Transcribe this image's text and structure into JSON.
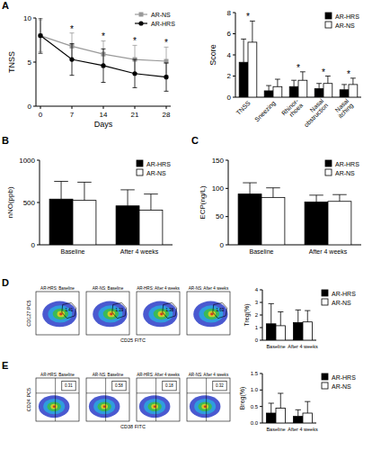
{
  "panel_labels": [
    "A",
    "B",
    "C",
    "D",
    "E"
  ],
  "chart_data": [
    {
      "type": "line",
      "x_label": "Days",
      "y_label": "TNSS",
      "x": [
        0,
        7,
        14,
        21,
        28
      ],
      "xlim": [
        -1,
        29
      ],
      "xticks": [
        0,
        7,
        14,
        21,
        28
      ],
      "ylim": [
        0,
        10
      ],
      "yticks": [
        0,
        5,
        10
      ],
      "legend": "upper right",
      "series": [
        {
          "name": "AR-NS",
          "color": "#999999",
          "marker": "square",
          "values": [
            8.0,
            6.8,
            5.9,
            5.3,
            5.1
          ],
          "errors": [
            1.8,
            1.5,
            1.5,
            1.6,
            1.6
          ]
        },
        {
          "name": "AR-HRS",
          "color": "#000000",
          "marker": "circle",
          "values": [
            8.0,
            5.3,
            4.6,
            3.7,
            3.3
          ],
          "errors": [
            2.0,
            1.8,
            1.9,
            1.6,
            1.6
          ]
        }
      ],
      "significance": [
        null,
        "*",
        "*",
        "*",
        "*"
      ]
    },
    {
      "type": "bar",
      "y_label": "Score",
      "categories": [
        "TNSS",
        "Sneezing",
        "Rhinor-\nrhoea",
        "Nasal\nobstruction",
        "Nasal\nitching"
      ],
      "ylim": [
        0,
        8
      ],
      "yticks": [
        0,
        2,
        4,
        6,
        8
      ],
      "legend": "upper right",
      "series": [
        {
          "name": "AR-HRS",
          "color": "#000000",
          "values": [
            3.3,
            0.6,
            1.0,
            0.8,
            0.7
          ],
          "errors": [
            2.2,
            0.5,
            0.6,
            0.5,
            0.5
          ]
        },
        {
          "name": "AR-NS",
          "color": "#ffffff",
          "values": [
            5.2,
            1.0,
            1.6,
            1.3,
            1.2
          ],
          "errors": [
            2.0,
            0.7,
            0.8,
            0.7,
            0.6
          ]
        }
      ],
      "significance": [
        "*",
        null,
        "*",
        "*",
        "*"
      ]
    },
    {
      "type": "bar",
      "y_label": "nNO(ppb)",
      "categories": [
        "Baseline",
        "After 4 weeks"
      ],
      "ylim": [
        0,
        1000
      ],
      "yticks": [
        0,
        500,
        1000
      ],
      "legend": "upper right",
      "series": [
        {
          "name": "AR-HRS",
          "color": "#000000",
          "values": [
            540,
            460
          ],
          "errors": [
            210,
            190
          ]
        },
        {
          "name": "AR-NS",
          "color": "#ffffff",
          "values": [
            525,
            410
          ],
          "errors": [
            215,
            190
          ]
        }
      ]
    },
    {
      "type": "bar",
      "y_label": "ECP(ng/L)",
      "categories": [
        "Baseline",
        "After 4 weeks"
      ],
      "ylim": [
        0,
        150
      ],
      "yticks": [
        0,
        50,
        100,
        150
      ],
      "legend": "upper right",
      "series": [
        {
          "name": "AR-HRS",
          "color": "#000000",
          "values": [
            90,
            76
          ],
          "errors": [
            20,
            12
          ]
        },
        {
          "name": "AR-NS",
          "color": "#ffffff",
          "values": [
            84,
            77
          ],
          "errors": [
            17,
            12
          ]
        }
      ]
    },
    {
      "type": "bar",
      "y_label": "Treg(%)",
      "categories": [
        "Baseline",
        "After 4 weeks"
      ],
      "ylim": [
        0,
        4
      ],
      "yticks": [
        0,
        1,
        2,
        3,
        4
      ],
      "legend": "upper right",
      "series": [
        {
          "name": "AR-HRS",
          "color": "#000000",
          "values": [
            1.3,
            1.4
          ],
          "errors": [
            1.6,
            1.0
          ]
        },
        {
          "name": "AR-NS",
          "color": "#ffffff",
          "values": [
            1.15,
            1.45
          ],
          "errors": [
            1.1,
            0.9
          ]
        }
      ]
    },
    {
      "type": "bar",
      "y_label": "Breg(%)",
      "categories": [
        "Baseline",
        "After 4 weeks"
      ],
      "ylim": [
        0,
        1.5
      ],
      "yticks": [
        {
          "value": 0,
          "label": "0.0"
        },
        0.5,
        {
          "value": 1,
          "label": "1.0"
        },
        1.5
      ],
      "legend": "upper right",
      "series": [
        {
          "name": "AR-HRS",
          "color": "#000000",
          "values": [
            0.3,
            0.2
          ],
          "errors": [
            0.3,
            0.2
          ]
        },
        {
          "name": "AR-NS",
          "color": "#ffffff",
          "values": [
            0.45,
            0.3
          ],
          "errors": [
            0.45,
            0.35
          ]
        }
      ]
    }
  ],
  "flow_plots": [
    {
      "panel": "D",
      "x_label": "CD25 FITC",
      "y_label": "CD127 PC5",
      "plots": [
        {
          "title": "AR-HRS: Baseline",
          "gate_value": "1.41"
        },
        {
          "title": "AR-NS: Baseline",
          "gate_value": "1.19"
        },
        {
          "title": "AR-HRS: After 4 weeks",
          "gate_value": "1.38"
        },
        {
          "title": "AR-NS: After 4 weeks",
          "gate_value": "1.63"
        }
      ]
    },
    {
      "panel": "E",
      "x_label": "CD38 FITC",
      "y_label": "CD24 PC5",
      "plots": [
        {
          "title": "AR-HRS: Baseline",
          "gate_value": "0.31"
        },
        {
          "title": "AR-NS: Baseline",
          "gate_value": "0.58"
        },
        {
          "title": "AR-HRS: After 4 weeks",
          "gate_value": "0.18"
        },
        {
          "title": "AR-NS: After 4 weeks",
          "gate_value": "0.32"
        }
      ]
    }
  ]
}
